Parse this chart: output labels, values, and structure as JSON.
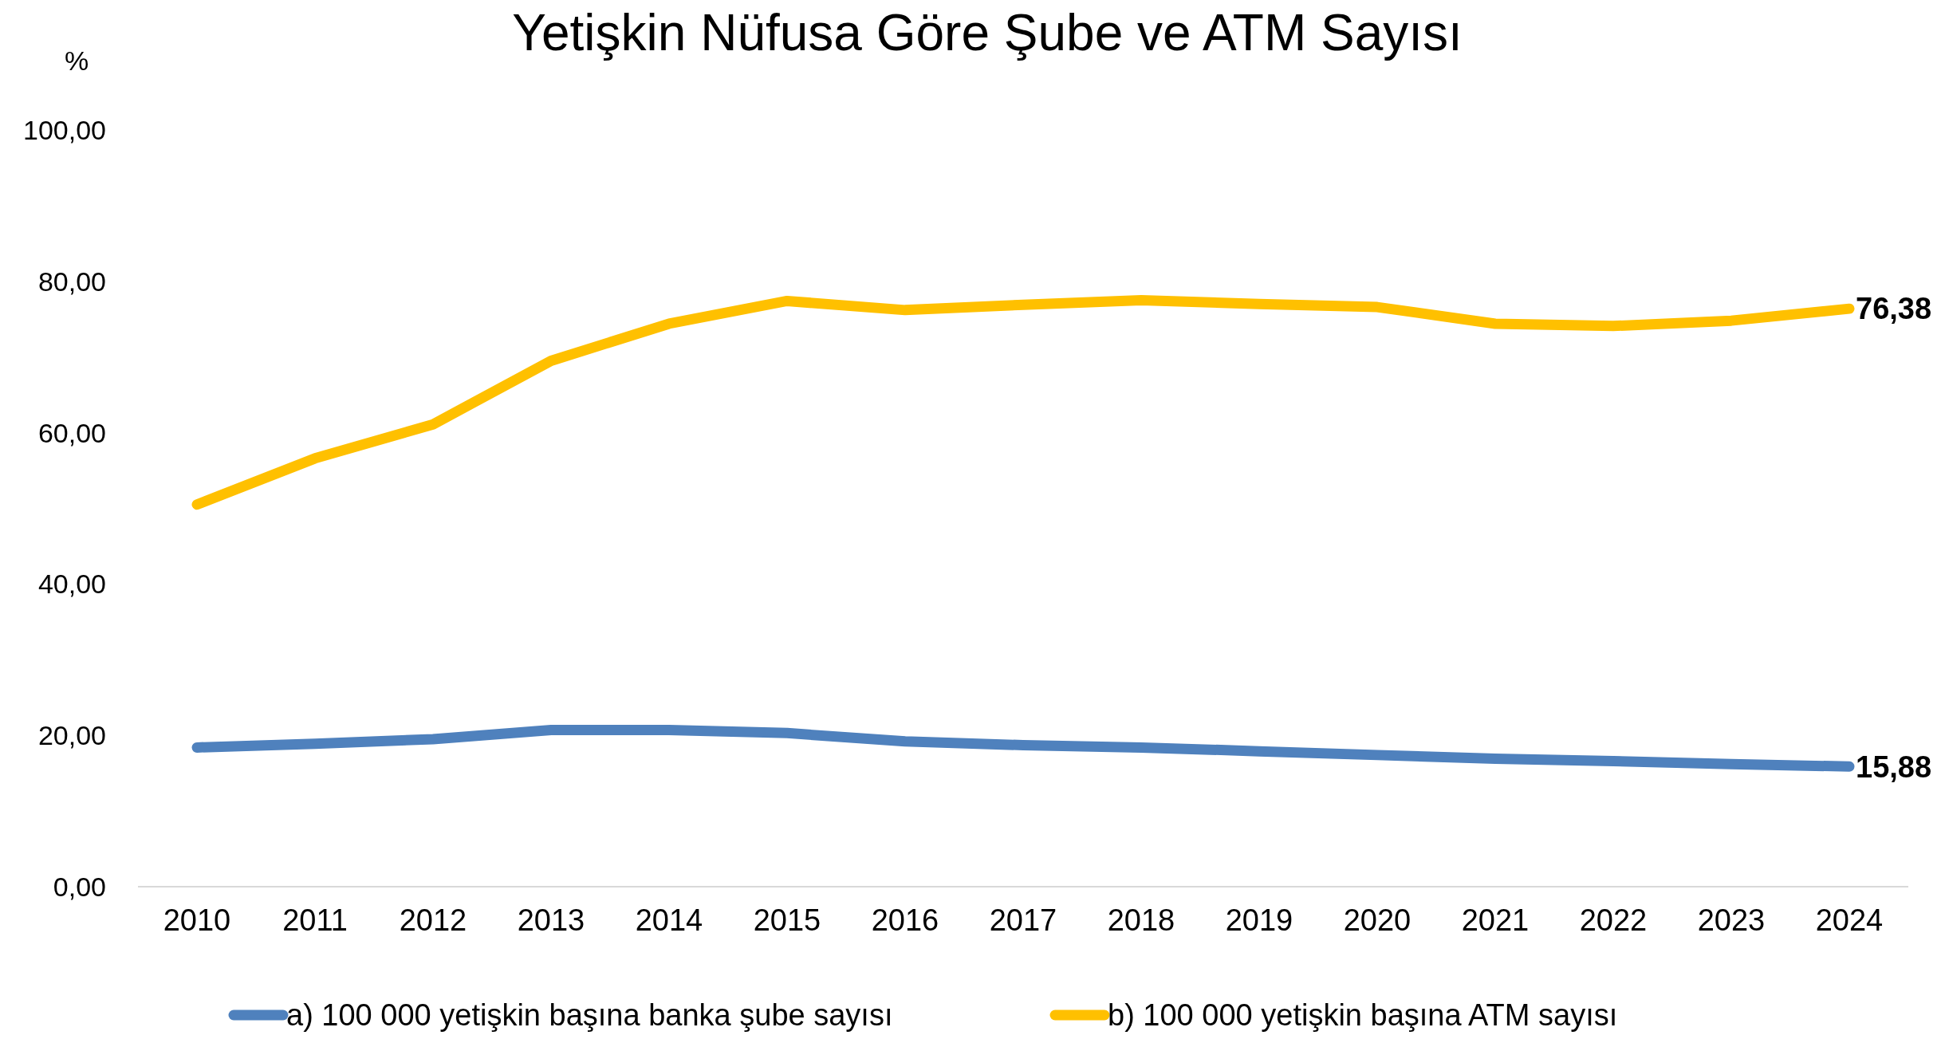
{
  "chart_data": {
    "type": "line",
    "title": "Yetişkin Nüfusa Göre Şube ve ATM Sayısı",
    "ylabel": "%",
    "categories": [
      "2010",
      "2011",
      "2012",
      "2013",
      "2014",
      "2015",
      "2016",
      "2017",
      "2018",
      "2019",
      "2020",
      "2021",
      "2022",
      "2023",
      "2024"
    ],
    "series": [
      {
        "name": "a) 100 000 yetişkin başına banka şube sayısı",
        "color": "#4f81bd",
        "values": [
          18.4,
          18.9,
          19.5,
          20.7,
          20.7,
          20.3,
          19.2,
          18.7,
          18.4,
          17.9,
          17.4,
          16.9,
          16.6,
          16.2,
          15.88
        ],
        "value_labels": [
          null,
          null,
          null,
          null,
          null,
          null,
          null,
          null,
          null,
          null,
          null,
          null,
          null,
          null,
          "15,88"
        ]
      },
      {
        "name": "b) 100 000 yetişkin başına ATM sayısı",
        "color": "#ffc000",
        "values": [
          50.5,
          56.6,
          61.1,
          69.5,
          74.4,
          77.4,
          76.2,
          76.9,
          77.5,
          77.0,
          76.6,
          74.4,
          74.1,
          74.8,
          76.38
        ],
        "value_labels": [
          null,
          null,
          null,
          null,
          null,
          null,
          null,
          null,
          null,
          null,
          null,
          null,
          null,
          null,
          "76,38"
        ]
      }
    ],
    "ylim": [
      0,
      100
    ],
    "yticks": [
      {
        "value": 0,
        "label": "0,00"
      },
      {
        "value": 20,
        "label": "20,00"
      },
      {
        "value": 40,
        "label": "40,00"
      },
      {
        "value": 60,
        "label": "60,00"
      },
      {
        "value": 80,
        "label": "80,00"
      },
      {
        "value": 100,
        "label": "100,00"
      }
    ],
    "grid": false,
    "legend": "bottom",
    "marker": "none",
    "line_style": "solid"
  }
}
